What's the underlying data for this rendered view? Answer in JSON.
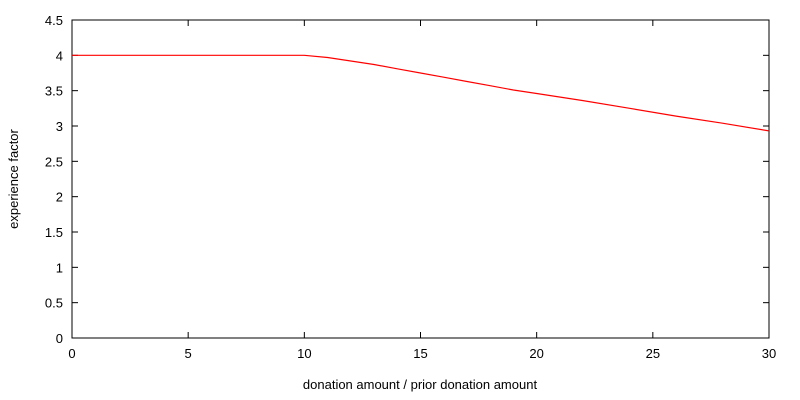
{
  "chart_data": {
    "type": "line",
    "title": "",
    "xlabel": "donation amount / prior donation amount",
    "ylabel": "experience factor",
    "xlim": [
      0,
      30
    ],
    "ylim": [
      0,
      4.5
    ],
    "xticks": [
      0,
      5,
      10,
      15,
      20,
      25,
      30
    ],
    "yticks": [
      0,
      0.5,
      1,
      1.5,
      2,
      2.5,
      3,
      3.5,
      4,
      4.5
    ],
    "xtick_labels": [
      "0",
      "5",
      "10",
      "15",
      "20",
      "25",
      "30"
    ],
    "ytick_labels": [
      "0",
      "0.5",
      "1",
      "1.5",
      "2",
      "2.5",
      "3",
      "3.5",
      "4",
      "4.5"
    ],
    "grid": false,
    "legend": "none",
    "series": [
      {
        "name": "experience factor",
        "color": "#ff0000",
        "x": [
          0,
          10,
          11,
          12,
          13,
          14,
          15,
          16,
          17,
          18,
          19,
          20,
          22,
          24,
          26,
          28,
          30
        ],
        "y": [
          4,
          4,
          3.97,
          3.92,
          3.87,
          3.81,
          3.75,
          3.69,
          3.63,
          3.57,
          3.51,
          3.46,
          3.36,
          3.25,
          3.14,
          3.04,
          2.93
        ]
      }
    ]
  }
}
